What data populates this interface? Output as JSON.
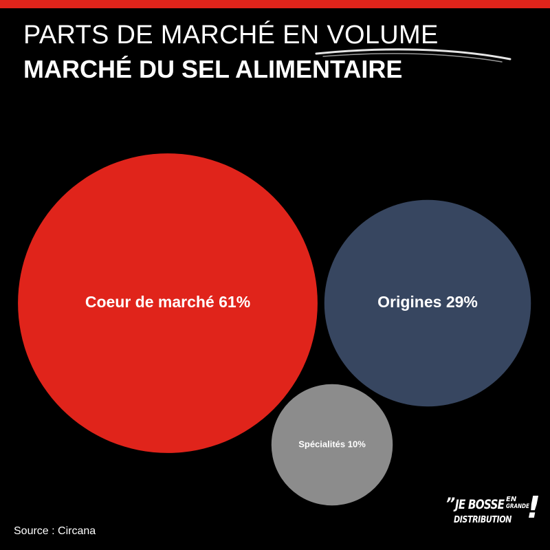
{
  "header": {
    "title_line1": "PARTS DE MARCHÉ EN VOLUME",
    "title_line2": "MARCHÉ DU SEL ALIMENTAIRE"
  },
  "colors": {
    "accent": "#e0241b",
    "background": "#000000",
    "navy": "#374660",
    "grey": "#8c8c8c"
  },
  "chart_data": {
    "type": "bubble",
    "series": [
      {
        "label": "Coeur de marché 61%",
        "value": 61,
        "color": "#e0241b"
      },
      {
        "label": "Origines 29%",
        "value": 29,
        "color": "#374660"
      },
      {
        "label": "Spécialités 10%",
        "value": 10,
        "color": "#8c8c8c"
      }
    ]
  },
  "footer": {
    "source": "Source : Circana",
    "logo": {
      "quote": "”",
      "line1": "JE BOSSE",
      "en": "EN",
      "grande": "GRANDE",
      "line2": "DISTRIBUTION",
      "bang": "!"
    }
  }
}
